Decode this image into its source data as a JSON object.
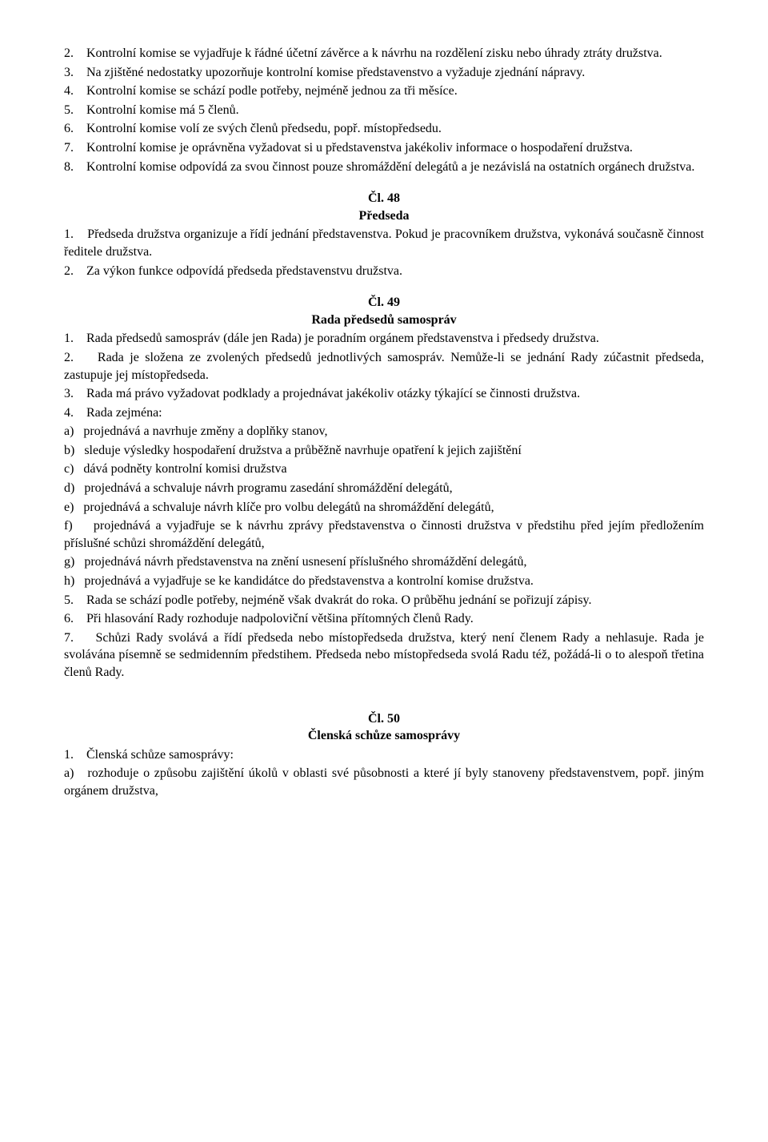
{
  "sec47": {
    "p2": "2.    Kontrolní komise se vyjadřuje k řádné  účetní závěrce a k návrhu na rozdělení zisku nebo úhrady ztráty družstva.",
    "p3": "3.    Na zjištěné nedostatky upozorňuje kontrolní komise představenstvo a vyžaduje zjednání nápravy.",
    "p4": "4.    Kontrolní komise se schází podle potřeby, nejméně jednou za tři měsíce.",
    "p5": "5.    Kontrolní komise má 5 členů.",
    "p6": "6.    Kontrolní komise volí ze svých členů předsedu, popř. místopředsedu.",
    "p7": "7.    Kontrolní komise je oprávněna vyžadovat si u představenstva jakékoliv informace o hospodaření družstva.",
    "p8": "8.    Kontrolní komise odpovídá za svou činnost pouze shromáždění delegátů a je nezávislá na ostatních orgánech družstva."
  },
  "art48": {
    "heading": "Čl. 48",
    "subheading": "Předseda",
    "p1": "1.    Předseda družstva organizuje a řídí jednání představenstva. Pokud je pracovníkem družstva, vykonává současně činnost ředitele družstva.",
    "p2": "2.    Za výkon funkce odpovídá předseda představenstvu družstva."
  },
  "art49": {
    "heading": "Čl. 49",
    "subheading": "Rada předsedů samospráv",
    "p1": "1.    Rada předsedů samospráv (dále jen Rada) je poradním orgánem představenstva i předsedy družstva.",
    "p2": "2.    Rada je složena ze zvolených předsedů jednotlivých samospráv. Nemůže-li se jednání Rady zúčastnit předseda, zastupuje jej místopředseda.",
    "p3": "3.    Rada má právo vyžadovat podklady a projednávat jakékoliv otázky týkající se činnosti družstva.",
    "p4": "4.    Rada zejména:",
    "a": "a)   projednává a navrhuje změny a doplňky stanov,",
    "b": "b)   sleduje výsledky hospodaření družstva a průběžně navrhuje opatření k jejich zajištění",
    "c": "c)   dává podněty kontrolní komisi družstva",
    "d": "d)   projednává a schvaluje návrh programu zasedání shromáždění delegátů,",
    "e": "e)   projednává a schvaluje návrh klíče pro volbu delegátů na shromáždění delegátů,",
    "f": "f)    projednává a vyjadřuje se k návrhu zprávy představenstva o činnosti družstva v předstihu před jejím předložením příslušné schůzi shromáždění delegátů,",
    "g": "g)   projednává návrh představenstva na znění usnesení příslušného shromáždění delegátů,",
    "h": "h)   projednává a vyjadřuje se ke kandidátce do představenstva a kontrolní komise družstva.",
    "p5": "5.    Rada se schází podle potřeby, nejméně však dvakrát do roka. O průběhu jednání se pořizují zápisy.",
    "p6": "6.    Při hlasování Rady rozhoduje nadpoloviční většina přítomných členů Rady.",
    "p7": "7.    Schůzi Rady svolává a řídí předseda nebo místopředseda družstva, který není členem Rady a nehlasuje. Rada je svolávána písemně se sedmidenním předstihem. Předseda nebo místopředseda svolá Radu též, požádá-li o to alespoň třetina členů Rady."
  },
  "art50": {
    "heading": "Čl. 50",
    "subheading": "Členská schůze samosprávy",
    "p1": "1.    Členská schůze samosprávy:",
    "a": "a)   rozhoduje o způsobu zajištění úkolů v oblasti své působnosti a které jí byly stanoveny představenstvem, popř. jiným orgánem družstva,"
  }
}
